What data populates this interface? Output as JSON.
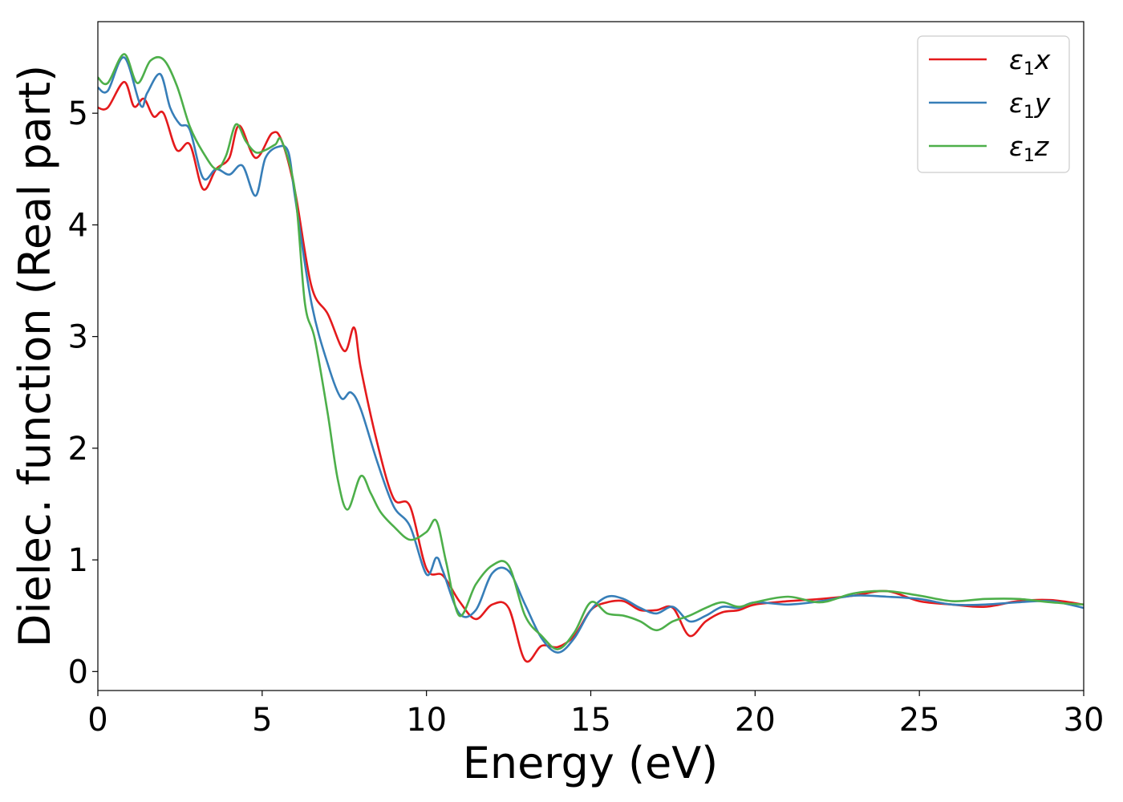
{
  "chart_data": {
    "type": "line",
    "xlabel": "Energy (eV)",
    "ylabel": "Dielec. function (Real part)",
    "xlim": [
      0,
      30
    ],
    "ylim": [
      -0.17,
      5.82
    ],
    "xticks": [
      0,
      5,
      10,
      15,
      20,
      25,
      30
    ],
    "xtick_labels": [
      "0",
      "5",
      "10",
      "15",
      "20",
      "25",
      "30"
    ],
    "yticks": [
      0,
      1,
      2,
      3,
      4,
      5
    ],
    "ytick_labels": [
      "0",
      "1",
      "2",
      "3",
      "4",
      "5"
    ],
    "grid": false,
    "legend_position": "top-right",
    "series": [
      {
        "name": "ε₁x",
        "legend_base": "ε",
        "legend_sub": "1",
        "legend_var": "x",
        "color": "#e41a1c",
        "x": [
          0,
          0.3,
          0.8,
          1.1,
          1.4,
          1.7,
          2.0,
          2.4,
          2.8,
          3.2,
          3.6,
          4.0,
          4.3,
          4.8,
          5.3,
          5.6,
          6.0,
          6.5,
          7.0,
          7.5,
          7.8,
          8.0,
          8.5,
          9.0,
          9.5,
          10.0,
          10.5,
          11.0,
          11.5,
          12.0,
          12.5,
          13.0,
          13.5,
          14.0,
          14.5,
          15.0,
          15.5,
          16.0,
          16.5,
          17.0,
          17.5,
          18.0,
          18.5,
          19.0,
          19.5,
          20,
          21,
          22,
          23,
          24,
          25,
          26,
          27,
          28,
          29,
          30
        ],
        "y": [
          5.05,
          5.05,
          5.28,
          5.06,
          5.13,
          4.97,
          5.0,
          4.67,
          4.72,
          4.32,
          4.5,
          4.6,
          4.89,
          4.6,
          4.82,
          4.75,
          4.3,
          3.45,
          3.2,
          2.87,
          3.08,
          2.72,
          2.05,
          1.55,
          1.48,
          0.92,
          0.86,
          0.63,
          0.47,
          0.6,
          0.57,
          0.1,
          0.23,
          0.22,
          0.32,
          0.55,
          0.62,
          0.63,
          0.55,
          0.55,
          0.57,
          0.32,
          0.45,
          0.53,
          0.55,
          0.6,
          0.63,
          0.65,
          0.68,
          0.72,
          0.63,
          0.6,
          0.58,
          0.63,
          0.64,
          0.6
        ]
      },
      {
        "name": "ε₁y",
        "legend_base": "ε",
        "legend_sub": "1",
        "legend_var": "y",
        "color": "#377eb8",
        "x": [
          0,
          0.3,
          0.8,
          1.3,
          1.5,
          1.9,
          2.2,
          2.5,
          2.8,
          3.2,
          3.6,
          4.0,
          4.4,
          4.8,
          5.1,
          5.5,
          5.8,
          6.0,
          6.5,
          7.0,
          7.4,
          7.7,
          8.0,
          8.5,
          9.0,
          9.5,
          10.0,
          10.3,
          10.5,
          11.0,
          11.5,
          12.0,
          12.5,
          13.0,
          13.5,
          14.0,
          14.5,
          15.0,
          15.5,
          16.0,
          16.5,
          17.0,
          17.5,
          18.0,
          18.5,
          19.0,
          19.5,
          20,
          21,
          22,
          23,
          24,
          25,
          26,
          27,
          28,
          29,
          30
        ],
        "y": [
          5.23,
          5.2,
          5.5,
          5.07,
          5.18,
          5.35,
          5.05,
          4.9,
          4.85,
          4.42,
          4.5,
          4.45,
          4.53,
          4.26,
          4.6,
          4.7,
          4.65,
          4.25,
          3.3,
          2.75,
          2.45,
          2.5,
          2.35,
          1.88,
          1.48,
          1.3,
          0.87,
          1.02,
          0.9,
          0.52,
          0.55,
          0.88,
          0.9,
          0.6,
          0.3,
          0.17,
          0.3,
          0.55,
          0.67,
          0.65,
          0.57,
          0.52,
          0.58,
          0.45,
          0.5,
          0.58,
          0.57,
          0.62,
          0.6,
          0.63,
          0.68,
          0.67,
          0.65,
          0.6,
          0.6,
          0.62,
          0.63,
          0.57
        ]
      },
      {
        "name": "ε₁z",
        "legend_base": "ε",
        "legend_sub": "1",
        "legend_var": "z",
        "color": "#4daf4a",
        "x": [
          0,
          0.3,
          0.8,
          1.2,
          1.6,
          2.0,
          2.4,
          2.8,
          3.2,
          3.6,
          3.9,
          4.2,
          4.5,
          4.8,
          5.1,
          5.4,
          5.6,
          6.0,
          6.3,
          6.6,
          7.0,
          7.3,
          7.6,
          8.0,
          8.3,
          8.6,
          9.0,
          9.5,
          10.0,
          10.3,
          10.6,
          11.0,
          11.5,
          12.0,
          12.5,
          13.0,
          13.5,
          14.0,
          14.5,
          15.0,
          15.5,
          16.0,
          16.5,
          17.0,
          17.5,
          18.0,
          18.5,
          19.0,
          19.5,
          20,
          21,
          22,
          23,
          24,
          25,
          26,
          27,
          28,
          29,
          30
        ],
        "y": [
          5.32,
          5.27,
          5.53,
          5.27,
          5.47,
          5.48,
          5.25,
          4.88,
          4.65,
          4.5,
          4.62,
          4.9,
          4.75,
          4.65,
          4.67,
          4.72,
          4.75,
          4.3,
          3.3,
          2.98,
          2.3,
          1.72,
          1.45,
          1.75,
          1.6,
          1.43,
          1.3,
          1.18,
          1.25,
          1.35,
          0.98,
          0.5,
          0.78,
          0.95,
          0.95,
          0.5,
          0.32,
          0.2,
          0.35,
          0.62,
          0.52,
          0.5,
          0.45,
          0.37,
          0.45,
          0.5,
          0.57,
          0.62,
          0.58,
          0.62,
          0.67,
          0.62,
          0.7,
          0.72,
          0.68,
          0.63,
          0.65,
          0.65,
          0.62,
          0.6
        ]
      }
    ]
  }
}
